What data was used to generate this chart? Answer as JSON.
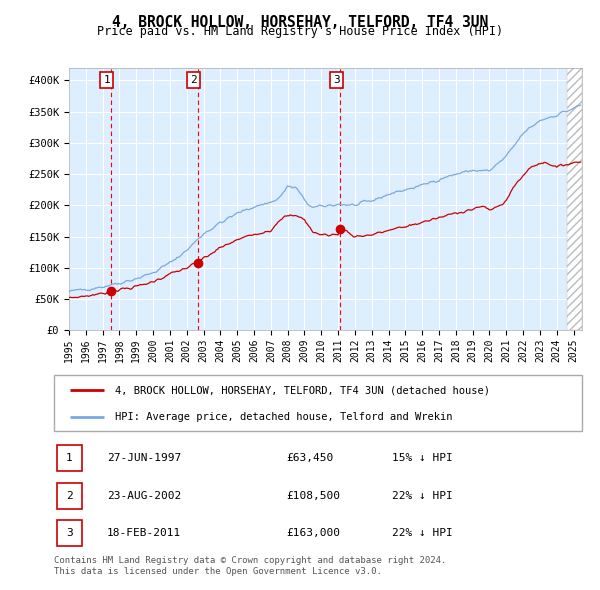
{
  "title": "4, BROCK HOLLOW, HORSEHAY, TELFORD, TF4 3UN",
  "subtitle": "Price paid vs. HM Land Registry's House Price Index (HPI)",
  "ylim": [
    0,
    420000
  ],
  "yticks": [
    0,
    50000,
    100000,
    150000,
    200000,
    250000,
    300000,
    350000,
    400000
  ],
  "ytick_labels": [
    "£0",
    "£50K",
    "£100K",
    "£150K",
    "£200K",
    "£250K",
    "£300K",
    "£350K",
    "£400K"
  ],
  "xlim_start": 1995.0,
  "xlim_end": 2025.5,
  "xtick_years": [
    1995,
    1996,
    1997,
    1998,
    1999,
    2000,
    2001,
    2002,
    2003,
    2004,
    2005,
    2006,
    2007,
    2008,
    2009,
    2010,
    2011,
    2012,
    2013,
    2014,
    2015,
    2016,
    2017,
    2018,
    2019,
    2020,
    2021,
    2022,
    2023,
    2024,
    2025
  ],
  "hpi_color": "#7aaadd",
  "price_color": "#cc0000",
  "dot_color": "#cc0000",
  "bg_color": "#ddeeff",
  "sale_dates": [
    1997.49,
    2002.64,
    2011.13
  ],
  "sale_prices": [
    63450,
    108500,
    163000
  ],
  "sale_labels": [
    "1",
    "2",
    "3"
  ],
  "legend_label_price": "4, BROCK HOLLOW, HORSEHAY, TELFORD, TF4 3UN (detached house)",
  "legend_label_hpi": "HPI: Average price, detached house, Telford and Wrekin",
  "table_rows": [
    [
      "1",
      "27-JUN-1997",
      "£63,450",
      "15% ↓ HPI"
    ],
    [
      "2",
      "23-AUG-2002",
      "£108,500",
      "22% ↓ HPI"
    ],
    [
      "3",
      "18-FEB-2011",
      "£163,000",
      "22% ↓ HPI"
    ]
  ],
  "footer": "Contains HM Land Registry data © Crown copyright and database right 2024.\nThis data is licensed under the Open Government Licence v3.0.",
  "hpi_anchors_t": [
    1995.0,
    1996.0,
    1997.0,
    1997.5,
    1998.0,
    1999.0,
    2000.0,
    2001.0,
    2002.0,
    2003.0,
    2004.0,
    2005.0,
    2006.0,
    2007.0,
    2007.5,
    2008.0,
    2008.5,
    2009.0,
    2009.5,
    2010.0,
    2011.0,
    2012.0,
    2013.0,
    2014.0,
    2015.0,
    2016.0,
    2017.0,
    2018.0,
    2019.0,
    2020.0,
    2021.0,
    2022.0,
    2023.0,
    2024.0,
    2025.0,
    2025.4
  ],
  "hpi_anchors_v": [
    62000,
    66000,
    70000,
    73000,
    76000,
    83000,
    92000,
    108000,
    128000,
    155000,
    172000,
    187000,
    198000,
    205000,
    212000,
    230000,
    228000,
    208000,
    196000,
    198000,
    202000,
    200000,
    207000,
    218000,
    225000,
    232000,
    242000,
    250000,
    256000,
    255000,
    278000,
    315000,
    336000,
    345000,
    355000,
    360000
  ],
  "price_anchors_t": [
    1995.0,
    1996.0,
    1997.0,
    1997.49,
    1998.0,
    1999.0,
    2000.0,
    2001.0,
    2002.0,
    2002.64,
    2003.0,
    2004.0,
    2005.0,
    2006.0,
    2007.0,
    2007.5,
    2008.0,
    2008.5,
    2009.0,
    2009.5,
    2010.0,
    2011.0,
    2011.13,
    2011.5,
    2012.0,
    2013.0,
    2014.0,
    2015.0,
    2016.0,
    2017.0,
    2018.0,
    2019.0,
    2019.5,
    2020.0,
    2020.5,
    2021.0,
    2021.5,
    2022.0,
    2022.5,
    2023.0,
    2023.5,
    2024.0,
    2024.5,
    2025.0,
    2025.4
  ],
  "price_anchors_v": [
    52000,
    55000,
    59000,
    63450,
    65000,
    70000,
    78000,
    90000,
    100000,
    108500,
    115000,
    132000,
    145000,
    154000,
    160000,
    177000,
    183000,
    183000,
    178000,
    157000,
    153000,
    153000,
    163000,
    159000,
    150000,
    153000,
    160000,
    166000,
    173000,
    180000,
    188000,
    194000,
    198000,
    193000,
    198000,
    208000,
    232000,
    248000,
    262000,
    268000,
    268000,
    260000,
    266000,
    268000,
    270000
  ],
  "hatch_start": 2024.58
}
